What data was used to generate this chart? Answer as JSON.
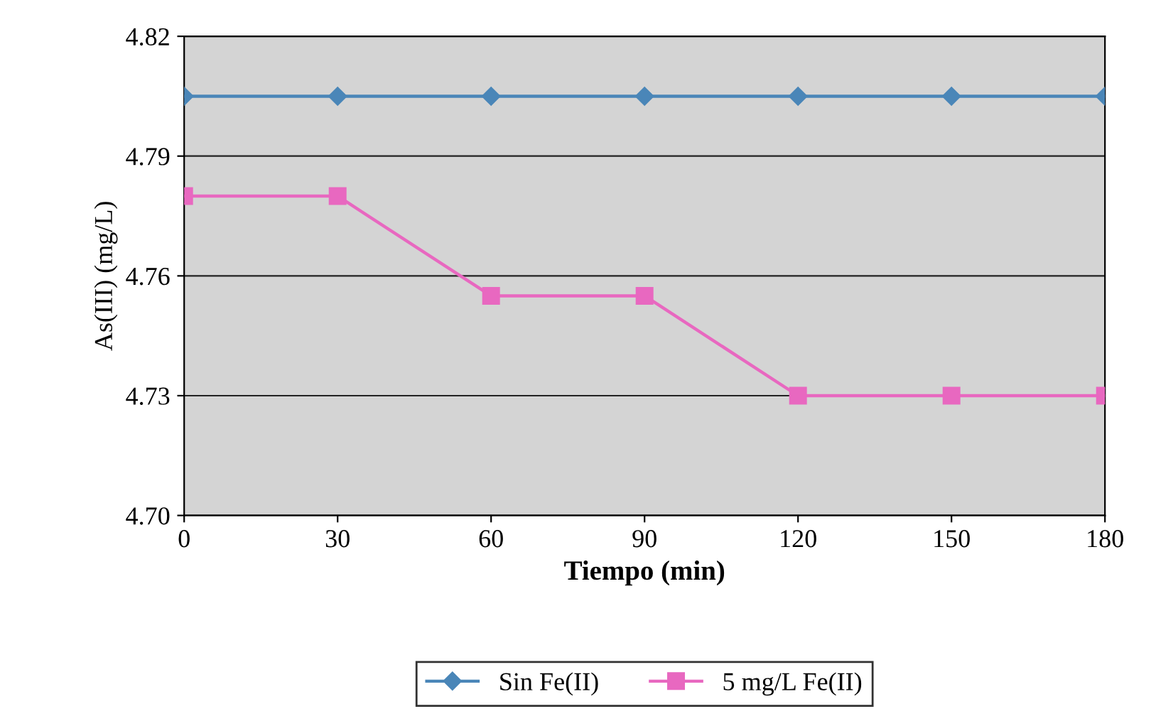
{
  "chart_data": {
    "type": "line",
    "xlabel": "Tiempo (min)",
    "ylabel": "As(III) (mg/L)",
    "x": [
      0,
      30,
      60,
      90,
      120,
      150,
      180
    ],
    "series": [
      {
        "name": "Sin Fe(II)",
        "color": "#4a86b8",
        "marker": "diamond",
        "values": [
          4.805,
          4.805,
          4.805,
          4.805,
          4.805,
          4.805,
          4.805
        ]
      },
      {
        "name": "5 mg/L Fe(II)",
        "color": "#e868c0",
        "marker": "square",
        "values": [
          4.78,
          4.78,
          4.755,
          4.755,
          4.73,
          4.73,
          4.73
        ]
      }
    ],
    "xlim": [
      0,
      180
    ],
    "xticks": [
      0,
      30,
      60,
      90,
      120,
      150,
      180
    ],
    "ylim": [
      4.7,
      4.82
    ],
    "yticks": [
      {
        "value": 4.7,
        "label": "4.70"
      },
      {
        "value": 4.73,
        "label": "4.73"
      },
      {
        "value": 4.76,
        "label": "4.76"
      },
      {
        "value": 4.79,
        "label": "4.79"
      },
      {
        "value": 4.82,
        "label": "4.82"
      }
    ],
    "grid": "y",
    "legend": "bottom",
    "line_style": "solid"
  }
}
